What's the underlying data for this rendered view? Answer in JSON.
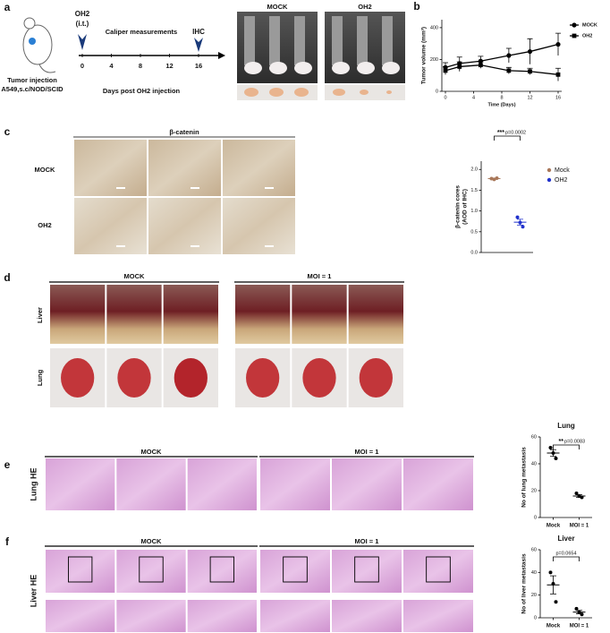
{
  "panel_a": {
    "label": "a",
    "injection": "Tumor injection",
    "model": "A549,s.c/NOD/SCID",
    "treatment": "OH2",
    "route": "(i.t.)",
    "measure": "Caliper measurements",
    "endpoint": "IHC",
    "timeline_ticks": [
      0,
      4,
      8,
      12,
      16
    ],
    "timeline_label": "Days post OH2 injection",
    "groups": [
      "MOCK",
      "OH2"
    ]
  },
  "panel_b": {
    "label": "b",
    "chart": {
      "type": "line",
      "ylabel": "Tumor volume (mm³)",
      "xlabel": "Time (Days)",
      "x": [
        0,
        2,
        5,
        9,
        12,
        16
      ],
      "xlim": [
        0,
        16
      ],
      "xticks": [
        0,
        4,
        8,
        12,
        16
      ],
      "ylim": [
        0,
        450
      ],
      "yticks": [
        0,
        200,
        400
      ],
      "legend": "right",
      "series": [
        {
          "name": "MOCK",
          "marker": "circle",
          "color": "#000000",
          "values": [
            150,
            175,
            190,
            225,
            250,
            295
          ],
          "errors": [
            30,
            40,
            30,
            45,
            80,
            70
          ]
        },
        {
          "name": "OH2",
          "marker": "square",
          "color": "#000000",
          "values": [
            130,
            155,
            165,
            130,
            125,
            105
          ],
          "errors": [
            25,
            30,
            20,
            20,
            20,
            40
          ]
        }
      ]
    }
  },
  "panel_c": {
    "label": "c",
    "stain": "β-catenin",
    "rows": [
      "MOCK",
      "OH2"
    ],
    "chart": {
      "type": "dot",
      "ylabel": [
        "β-catenin cores",
        "(AOD of IHC)"
      ],
      "ylim": [
        0,
        2.2
      ],
      "yticks": [
        {
          "value": 0,
          "label": "0.0"
        },
        {
          "value": 0.5,
          "label": "0.5"
        },
        {
          "value": 1,
          "label": "1.0"
        },
        {
          "value": 1.5,
          "label": "1.5"
        },
        {
          "value": 2,
          "label": "2.0"
        }
      ],
      "legend": "right",
      "stars": "***",
      "p": "p=0.0002",
      "groups": [
        {
          "name": "Mock",
          "color": "#a9785a",
          "values": [
            1.78,
            1.76,
            1.79
          ],
          "mean": 1.78,
          "error": 0.01
        },
        {
          "name": "OH2",
          "color": "#2233cc",
          "values": [
            0.85,
            0.72,
            0.62
          ],
          "mean": 0.73,
          "error": 0.07
        }
      ]
    }
  },
  "panel_d": {
    "label": "d",
    "groups": [
      "MOCK",
      "MOI = 1"
    ],
    "rows": [
      "Liver",
      "Lung"
    ]
  },
  "panel_e": {
    "label": "e",
    "row": "Lung HE",
    "groups": [
      "MOCK",
      "MOI = 1"
    ],
    "chart": {
      "type": "dot",
      "title": "Lung",
      "ylabel": [
        "No of lung metastasis"
      ],
      "ylim": [
        0,
        60
      ],
      "yticks": [
        0,
        20,
        40,
        60
      ],
      "legend": "axis",
      "stars": "**",
      "p": "p=0.0083",
      "groups": [
        {
          "name": "Mock",
          "color": "#000000",
          "values": [
            52,
            48,
            44
          ],
          "mean": 48,
          "error": 2.5
        },
        {
          "name": "MOI = 1",
          "color": "#000000",
          "values": [
            18,
            16,
            15
          ],
          "mean": 16,
          "error": 1
        }
      ]
    }
  },
  "panel_f": {
    "label": "f",
    "row": "Liver HE",
    "groups": [
      "MOCK",
      "MOI = 1"
    ],
    "chart": {
      "type": "dot",
      "title": "Liver",
      "ylabel": [
        "No of liver metastasis"
      ],
      "ylim": [
        0,
        60
      ],
      "yticks": [
        0,
        20,
        40,
        60
      ],
      "legend": "axis",
      "p": "p=0.0654",
      "groups": [
        {
          "name": "Mock",
          "color": "#000000",
          "values": [
            40,
            30,
            14
          ],
          "mean": 29,
          "error": 8
        },
        {
          "name": "MOI = 1",
          "color": "#000000",
          "values": [
            8,
            5,
            3
          ],
          "mean": 5,
          "error": 1.5
        }
      ]
    }
  }
}
